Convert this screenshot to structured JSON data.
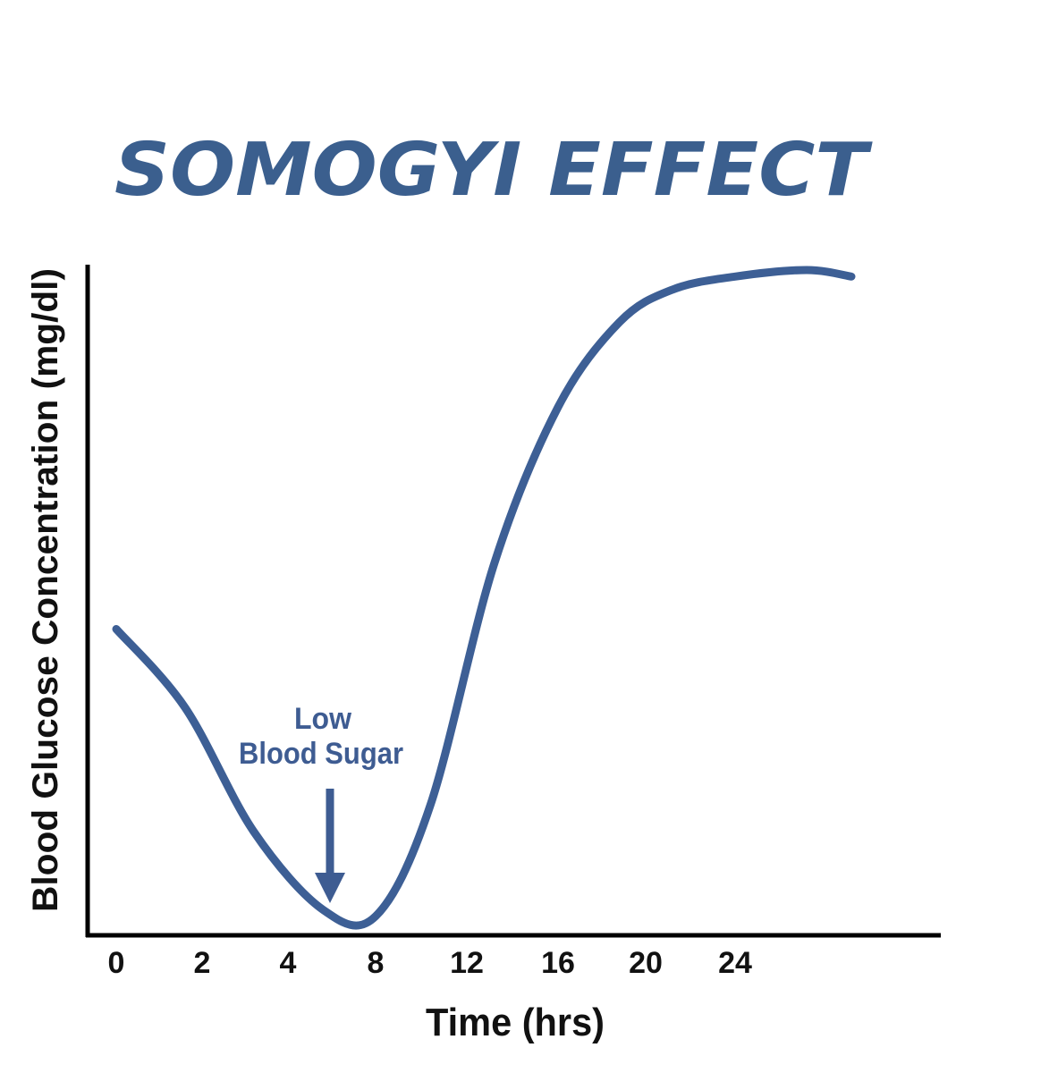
{
  "chart_data": {
    "type": "line",
    "title": "SOMOGYI EFFECT",
    "xlabel": "Time (hrs)",
    "ylabel": "Blood Glucose Concentration (mg/dl)",
    "x_ticks": [
      "0",
      "2",
      "4",
      "8",
      "12",
      "16",
      "20",
      "24"
    ],
    "y_ticks": [],
    "grid": false,
    "legend": "none",
    "annotation": {
      "lines": [
        "Low",
        "Blood Sugar"
      ],
      "points_to_tick": "8"
    },
    "series": [
      {
        "values_note": "relative glucose level (0 = x-axis, 1 = top of y-axis); x in tick-index units",
        "x": [
          0,
          0.8,
          1.6,
          2.4,
          3.0,
          3.6,
          4.3,
          5.0,
          5.7,
          6.3,
          7.0,
          7.8,
          8.3
        ],
        "y": [
          0.45,
          0.33,
          0.14,
          0.02,
          0.01,
          0.18,
          0.55,
          0.79,
          0.92,
          0.97,
          0.99,
          1.0,
          0.99
        ]
      }
    ],
    "colors": {
      "curve": "#3d5f95",
      "title": "#3b5f8e",
      "annotation": "#3e5c92",
      "axes": "#000000",
      "text": "#111111"
    }
  }
}
